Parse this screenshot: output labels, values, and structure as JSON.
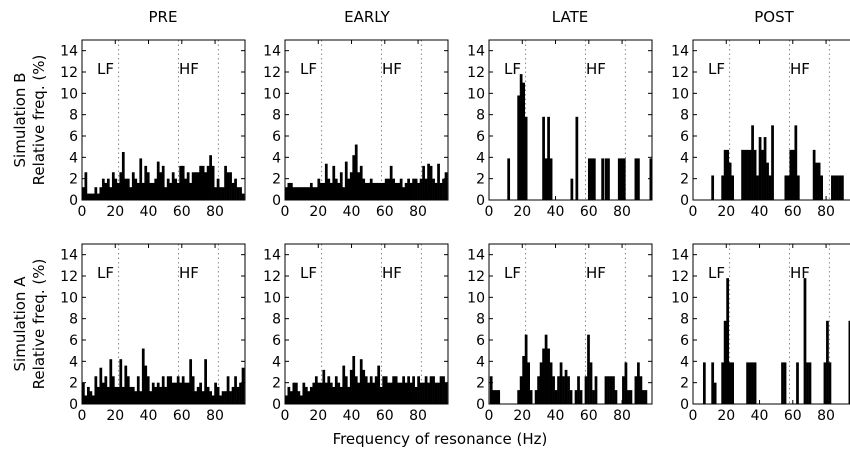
{
  "figure": {
    "xlabel": "Frequency of resonance (Hz)",
    "columns": [
      "PRE",
      "EARLY",
      "LATE",
      "POST"
    ],
    "rows": [
      {
        "line1": "Simulation B",
        "line2": "Relative freq. (%)"
      },
      {
        "line1": "Simulation A",
        "line2": "Relative freq. (%)"
      }
    ],
    "band_labels": {
      "low": "LF",
      "high": "HF"
    },
    "bar_color": "#000000",
    "divider_color": "#888888"
  },
  "chart_data": [
    {
      "type": "bar",
      "row": "Simulation B",
      "column": "PRE",
      "xlim": [
        0,
        98
      ],
      "ylim": [
        0,
        15
      ],
      "bin_width": 1.5,
      "xticks": [
        0,
        20,
        40,
        60,
        80
      ],
      "yticks": [
        0,
        2,
        4,
        6,
        8,
        10,
        12,
        14
      ],
      "dividers": [
        22,
        58,
        82
      ],
      "x": [
        0.75,
        2.25,
        3.75,
        5.25,
        6.75,
        8.25,
        9.75,
        11.25,
        12.75,
        14.25,
        15.75,
        17.25,
        18.75,
        20.25,
        21.75,
        23.25,
        24.75,
        26.25,
        27.75,
        29.25,
        30.75,
        32.25,
        33.75,
        35.25,
        36.75,
        38.25,
        39.75,
        41.25,
        42.75,
        44.25,
        45.75,
        47.25,
        48.75,
        50.25,
        51.75,
        53.25,
        54.75,
        56.25,
        57.75,
        59.25,
        60.75,
        62.25,
        63.75,
        65.25,
        66.75,
        68.25,
        69.75,
        71.25,
        72.75,
        74.25,
        75.75,
        77.25,
        78.75,
        80.25,
        81.75,
        83.25,
        84.75,
        86.25,
        87.75,
        89.25,
        90.75,
        92.25,
        93.75,
        95.25,
        96.75
      ],
      "values": [
        1.2,
        2.6,
        0.6,
        0.6,
        0.6,
        1.2,
        0.6,
        1.2,
        2.0,
        1.6,
        2.0,
        1.2,
        2.6,
        2.0,
        1.6,
        2.6,
        4.5,
        2.0,
        2.0,
        1.2,
        2.6,
        2.0,
        1.6,
        3.9,
        1.6,
        3.2,
        2.6,
        1.6,
        1.6,
        2.0,
        3.6,
        2.6,
        3.2,
        1.2,
        2.0,
        1.6,
        2.6,
        2.0,
        1.6,
        3.2,
        3.2,
        2.0,
        2.6,
        1.6,
        2.6,
        2.6,
        2.6,
        3.2,
        3.2,
        2.6,
        3.2,
        4.2,
        3.2,
        1.2,
        2.0,
        1.2,
        1.2,
        3.2,
        2.6,
        2.6,
        1.6,
        2.0,
        1.2,
        1.2,
        0.6
      ]
    },
    {
      "type": "bar",
      "row": "Simulation B",
      "column": "EARLY",
      "xlim": [
        0,
        98
      ],
      "ylim": [
        0,
        15
      ],
      "bin_width": 1.5,
      "xticks": [
        0,
        20,
        40,
        60,
        80
      ],
      "yticks": [
        0,
        2,
        4,
        6,
        8,
        10,
        12,
        14
      ],
      "dividers": [
        22,
        58,
        82
      ],
      "x": [
        0.75,
        2.25,
        3.75,
        5.25,
        6.75,
        8.25,
        9.75,
        11.25,
        12.75,
        14.25,
        15.75,
        17.25,
        18.75,
        20.25,
        21.75,
        23.25,
        24.75,
        26.25,
        27.75,
        29.25,
        30.75,
        32.25,
        33.75,
        35.25,
        36.75,
        38.25,
        39.75,
        41.25,
        42.75,
        44.25,
        45.75,
        47.25,
        48.75,
        50.25,
        51.75,
        53.25,
        54.75,
        56.25,
        57.75,
        59.25,
        60.75,
        62.25,
        63.75,
        65.25,
        66.75,
        68.25,
        69.75,
        71.25,
        72.75,
        74.25,
        75.75,
        77.25,
        78.75,
        80.25,
        81.75,
        83.25,
        84.75,
        86.25,
        87.75,
        89.25,
        90.75,
        92.25,
        93.75,
        95.25,
        96.75
      ],
      "values": [
        1.2,
        1.6,
        1.6,
        1.2,
        1.2,
        1.2,
        1.2,
        1.2,
        1.2,
        1.2,
        1.6,
        1.2,
        1.2,
        2.0,
        1.6,
        1.6,
        3.4,
        2.0,
        1.6,
        3.2,
        2.0,
        1.6,
        2.6,
        1.2,
        3.6,
        2.0,
        2.6,
        4.2,
        5.2,
        2.6,
        3.2,
        2.0,
        1.6,
        1.6,
        2.0,
        1.6,
        1.6,
        1.6,
        1.6,
        1.6,
        2.0,
        2.0,
        3.2,
        2.0,
        1.6,
        1.6,
        2.0,
        1.2,
        1.6,
        2.0,
        1.6,
        2.0,
        2.0,
        1.6,
        2.0,
        3.2,
        2.0,
        3.4,
        3.2,
        2.0,
        1.6,
        3.4,
        1.6,
        2.0,
        2.6
      ]
    },
    {
      "type": "bar",
      "row": "Simulation B",
      "column": "LATE",
      "xlim": [
        0,
        98
      ],
      "ylim": [
        0,
        15
      ],
      "bin_width": 1.5,
      "xticks": [
        0,
        20,
        40,
        60,
        80
      ],
      "yticks": [
        0,
        2,
        4,
        6,
        8,
        10,
        12,
        14
      ],
      "dividers": [
        22,
        58,
        82
      ],
      "x": [
        11.75,
        17.75,
        19.25,
        20.75,
        22.25,
        32.75,
        34.25,
        35.75,
        37.25,
        49.75,
        52.75,
        60.25,
        61.75,
        63.25,
        68.25,
        70.25,
        71.75,
        78.25,
        79.75,
        81.25,
        88.25,
        89.75,
        97.25
      ],
      "values": [
        3.9,
        9.8,
        11.8,
        11.0,
        7.8,
        7.8,
        3.9,
        7.8,
        3.9,
        2.0,
        7.8,
        3.9,
        3.9,
        3.9,
        3.9,
        3.9,
        3.9,
        3.9,
        3.9,
        3.9,
        3.9,
        3.9,
        3.9
      ]
    },
    {
      "type": "bar",
      "row": "Simulation B",
      "column": "POST",
      "xlim": [
        0,
        98
      ],
      "ylim": [
        0,
        15
      ],
      "bin_width": 1.5,
      "xticks": [
        0,
        20,
        40,
        60,
        80
      ],
      "yticks": [
        0,
        2,
        4,
        6,
        8,
        10,
        12,
        14
      ],
      "dividers": [
        22,
        58,
        82
      ],
      "x": [
        11.75,
        17.75,
        19.25,
        20.75,
        22.25,
        23.75,
        29.75,
        31.25,
        32.75,
        34.25,
        35.75,
        37.25,
        38.75,
        40.25,
        41.75,
        43.25,
        44.75,
        46.25,
        47.75,
        55.75,
        57.25,
        58.75,
        60.25,
        61.75,
        63.25,
        72.75,
        74.25,
        75.75,
        77.25,
        83.75,
        85.25,
        86.75,
        88.25,
        89.75
      ],
      "values": [
        2.3,
        2.3,
        4.7,
        4.7,
        3.5,
        2.3,
        4.7,
        4.7,
        4.7,
        4.7,
        7.0,
        4.7,
        2.3,
        5.9,
        4.7,
        5.9,
        3.5,
        2.3,
        7.0,
        2.3,
        2.3,
        4.7,
        4.7,
        7.0,
        2.3,
        4.7,
        3.5,
        3.5,
        2.3,
        2.3,
        2.3,
        2.3,
        2.3,
        2.3
      ]
    },
    {
      "type": "bar",
      "row": "Simulation A",
      "column": "PRE",
      "xlim": [
        0,
        98
      ],
      "ylim": [
        0,
        15
      ],
      "bin_width": 1.5,
      "xticks": [
        0,
        20,
        40,
        60,
        80
      ],
      "yticks": [
        0,
        2,
        4,
        6,
        8,
        10,
        12,
        14
      ],
      "dividers": [
        22,
        58,
        82
      ],
      "x": [
        0.75,
        2.25,
        3.75,
        5.25,
        6.75,
        8.25,
        9.75,
        11.25,
        12.75,
        14.25,
        15.75,
        17.25,
        18.75,
        20.25,
        21.75,
        23.25,
        24.75,
        26.25,
        27.75,
        29.25,
        30.75,
        32.25,
        33.75,
        35.25,
        36.75,
        38.25,
        39.75,
        41.25,
        42.75,
        44.25,
        45.75,
        47.25,
        48.75,
        50.25,
        51.75,
        53.25,
        54.75,
        56.25,
        57.75,
        59.25,
        60.75,
        62.25,
        63.75,
        65.25,
        66.75,
        68.25,
        69.75,
        71.25,
        72.75,
        74.25,
        75.75,
        77.25,
        78.75,
        80.25,
        81.75,
        83.25,
        84.75,
        86.25,
        87.75,
        89.25,
        90.75,
        92.25,
        93.75,
        95.25,
        96.75
      ],
      "values": [
        2.0,
        0.8,
        1.6,
        1.2,
        0.8,
        2.6,
        1.6,
        3.4,
        2.0,
        2.6,
        1.6,
        4.2,
        2.6,
        1.6,
        1.6,
        4.2,
        1.6,
        3.6,
        2.6,
        1.6,
        1.6,
        1.2,
        2.6,
        1.2,
        5.2,
        3.6,
        2.6,
        1.2,
        2.0,
        1.6,
        2.0,
        1.6,
        2.6,
        1.6,
        2.6,
        2.6,
        2.0,
        2.0,
        2.6,
        2.0,
        2.6,
        2.0,
        2.0,
        4.2,
        2.6,
        1.2,
        1.6,
        2.0,
        1.2,
        4.2,
        1.6,
        1.2,
        0.8,
        2.0,
        1.6,
        0.8,
        1.2,
        1.2,
        2.6,
        1.2,
        1.6,
        2.6,
        1.6,
        2.0,
        3.4
      ]
    },
    {
      "type": "bar",
      "row": "Simulation A",
      "column": "EARLY",
      "xlim": [
        0,
        98
      ],
      "ylim": [
        0,
        15
      ],
      "bin_width": 1.5,
      "xticks": [
        0,
        20,
        40,
        60,
        80
      ],
      "yticks": [
        0,
        2,
        4,
        6,
        8,
        10,
        12,
        14
      ],
      "dividers": [
        22,
        58,
        82
      ],
      "x": [
        0.75,
        2.25,
        3.75,
        5.25,
        6.75,
        8.25,
        9.75,
        11.25,
        12.75,
        14.25,
        15.75,
        17.25,
        18.75,
        20.25,
        21.75,
        23.25,
        24.75,
        26.25,
        27.75,
        29.25,
        30.75,
        32.25,
        33.75,
        35.25,
        36.75,
        38.25,
        39.75,
        41.25,
        42.75,
        44.25,
        45.75,
        47.25,
        48.75,
        50.25,
        51.75,
        53.25,
        54.75,
        56.25,
        57.75,
        59.25,
        60.75,
        62.25,
        63.75,
        65.25,
        66.75,
        68.25,
        69.75,
        71.25,
        72.75,
        74.25,
        75.75,
        77.25,
        78.75,
        80.25,
        81.75,
        83.25,
        84.75,
        86.25,
        87.75,
        89.25,
        90.75,
        92.25,
        93.75,
        95.25,
        96.75
      ],
      "values": [
        0.8,
        1.6,
        1.2,
        2.0,
        2.0,
        1.2,
        0.8,
        2.0,
        1.6,
        1.2,
        1.6,
        2.0,
        2.6,
        2.0,
        2.0,
        3.2,
        2.0,
        2.6,
        2.0,
        1.6,
        2.6,
        2.0,
        1.6,
        3.6,
        2.6,
        1.6,
        3.2,
        4.5,
        2.6,
        2.0,
        4.2,
        3.2,
        2.6,
        2.0,
        2.6,
        2.0,
        2.6,
        3.6,
        1.6,
        2.6,
        2.6,
        2.0,
        2.0,
        2.6,
        2.6,
        2.0,
        2.0,
        2.6,
        2.0,
        2.6,
        2.0,
        2.6,
        1.6,
        2.6,
        2.0,
        2.0,
        2.6,
        2.0,
        2.6,
        2.6,
        2.0,
        2.0,
        2.6,
        2.6,
        2.0
      ]
    },
    {
      "type": "bar",
      "row": "Simulation A",
      "column": "LATE",
      "xlim": [
        0,
        98
      ],
      "ylim": [
        0,
        15
      ],
      "bin_width": 1.5,
      "xticks": [
        0,
        20,
        40,
        60,
        80
      ],
      "yticks": [
        0,
        2,
        4,
        6,
        8,
        10,
        12,
        14
      ],
      "dividers": [
        22,
        58,
        82
      ],
      "x": [
        1.25,
        2.75,
        4.25,
        5.75,
        17.75,
        19.25,
        20.75,
        22.25,
        23.75,
        25.25,
        28.25,
        29.75,
        31.25,
        32.75,
        34.25,
        35.75,
        37.25,
        38.75,
        40.25,
        41.75,
        43.25,
        44.75,
        46.25,
        47.75,
        49.25,
        52.25,
        53.75,
        55.25,
        58.25,
        59.75,
        61.25,
        62.75,
        64.25,
        70.25,
        71.75,
        73.25,
        74.75,
        76.25,
        80.75,
        82.25,
        83.75,
        85.25,
        88.25,
        89.75,
        91.25,
        92.75,
        94.25
      ],
      "values": [
        2.6,
        1.3,
        1.3,
        1.3,
        1.3,
        2.6,
        4.5,
        6.5,
        3.9,
        1.3,
        1.3,
        2.6,
        3.9,
        5.2,
        6.5,
        5.2,
        3.9,
        2.6,
        1.3,
        2.6,
        3.9,
        2.6,
        3.2,
        2.6,
        1.3,
        1.3,
        2.6,
        1.3,
        2.6,
        6.5,
        3.9,
        1.3,
        2.6,
        2.6,
        2.6,
        2.6,
        2.6,
        1.3,
        2.6,
        3.9,
        1.3,
        1.3,
        2.6,
        3.9,
        2.6,
        1.3,
        1.3
      ]
    },
    {
      "type": "bar",
      "row": "Simulation A",
      "column": "POST",
      "xlim": [
        0,
        98
      ],
      "ylim": [
        0,
        15
      ],
      "bin_width": 1.5,
      "xticks": [
        0,
        20,
        40,
        60,
        80
      ],
      "yticks": [
        0,
        2,
        4,
        6,
        8,
        10,
        12,
        14
      ],
      "dividers": [
        22,
        58,
        82
      ],
      "x": [
        6.75,
        11.75,
        13.25,
        17.75,
        19.25,
        20.75,
        22.25,
        23.75,
        32.75,
        34.25,
        35.75,
        37.25,
        53.75,
        55.25,
        62.75,
        67.25,
        68.75,
        70.25,
        79.25,
        80.75,
        82.25,
        94.25,
        95.75
      ],
      "values": [
        3.9,
        3.9,
        2.0,
        3.9,
        7.8,
        11.8,
        3.9,
        3.9,
        3.9,
        3.9,
        3.9,
        3.9,
        3.9,
        3.9,
        3.9,
        11.8,
        3.9,
        3.9,
        3.9,
        7.8,
        3.9,
        7.8,
        3.9
      ]
    }
  ]
}
